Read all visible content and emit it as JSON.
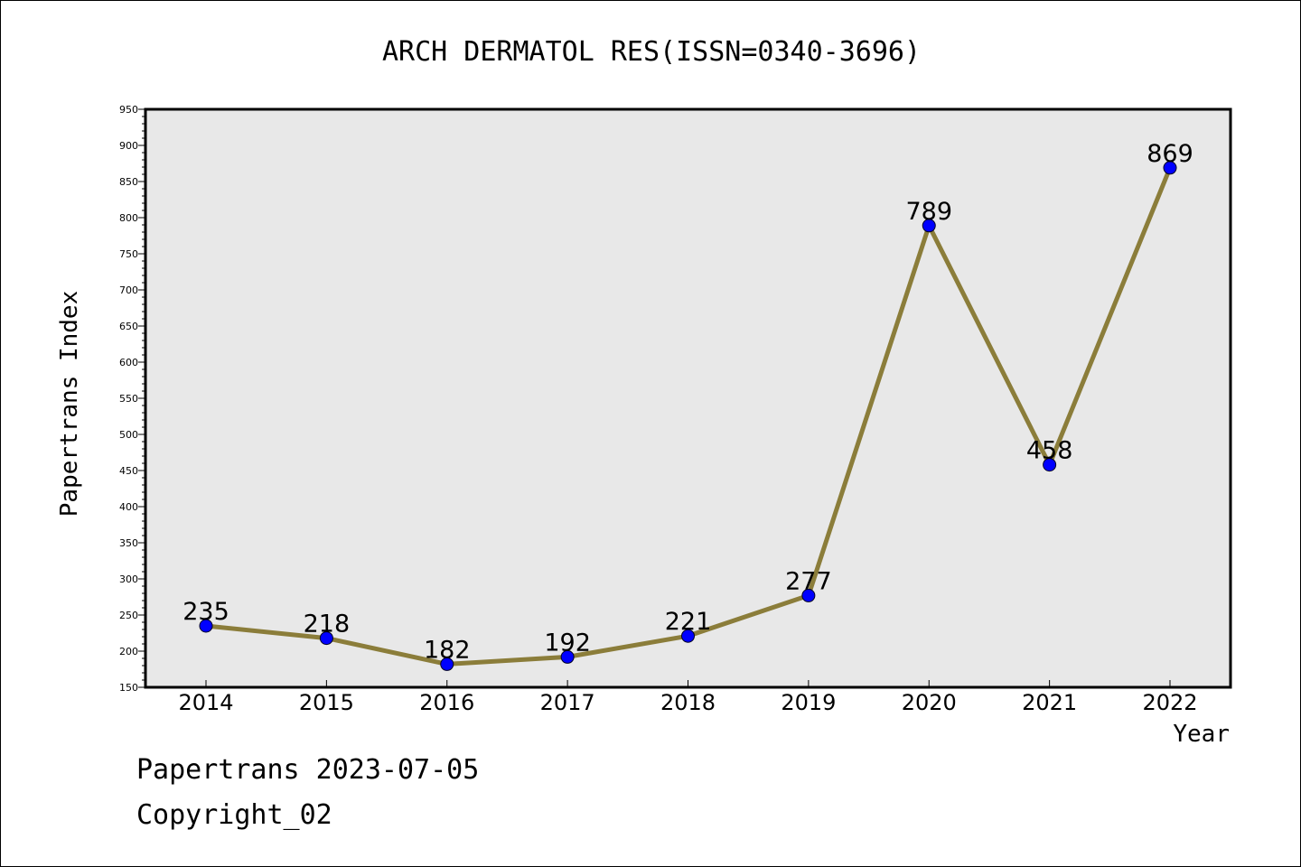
{
  "chart_data": {
    "type": "line",
    "title": "ARCH DERMATOL RES(ISSN=0340-3696)",
    "xlabel": "Year",
    "ylabel": "Papertrans Index",
    "categories": [
      "2014",
      "2015",
      "2016",
      "2017",
      "2018",
      "2019",
      "2020",
      "2021",
      "2022"
    ],
    "values": [
      235,
      218,
      182,
      192,
      221,
      277,
      789,
      458,
      869
    ],
    "data_labels": [
      "235",
      "218",
      "182",
      "192",
      "221",
      "277",
      "789",
      "458",
      "869"
    ],
    "ylim": [
      150,
      950
    ],
    "yticks": [
      150,
      200,
      250,
      300,
      350,
      400,
      450,
      500,
      550,
      600,
      650,
      700,
      750,
      800,
      850,
      900,
      950
    ],
    "y_minor_step": 10,
    "grid": false,
    "legend": "none",
    "colors": {
      "line": "#8b7d3a",
      "marker": "#0000ff",
      "plot_background": "#e8e8e8",
      "axes": "#000000"
    }
  },
  "footer": {
    "line1": "Papertrans 2023-07-05",
    "line2": "Copyright_02"
  }
}
